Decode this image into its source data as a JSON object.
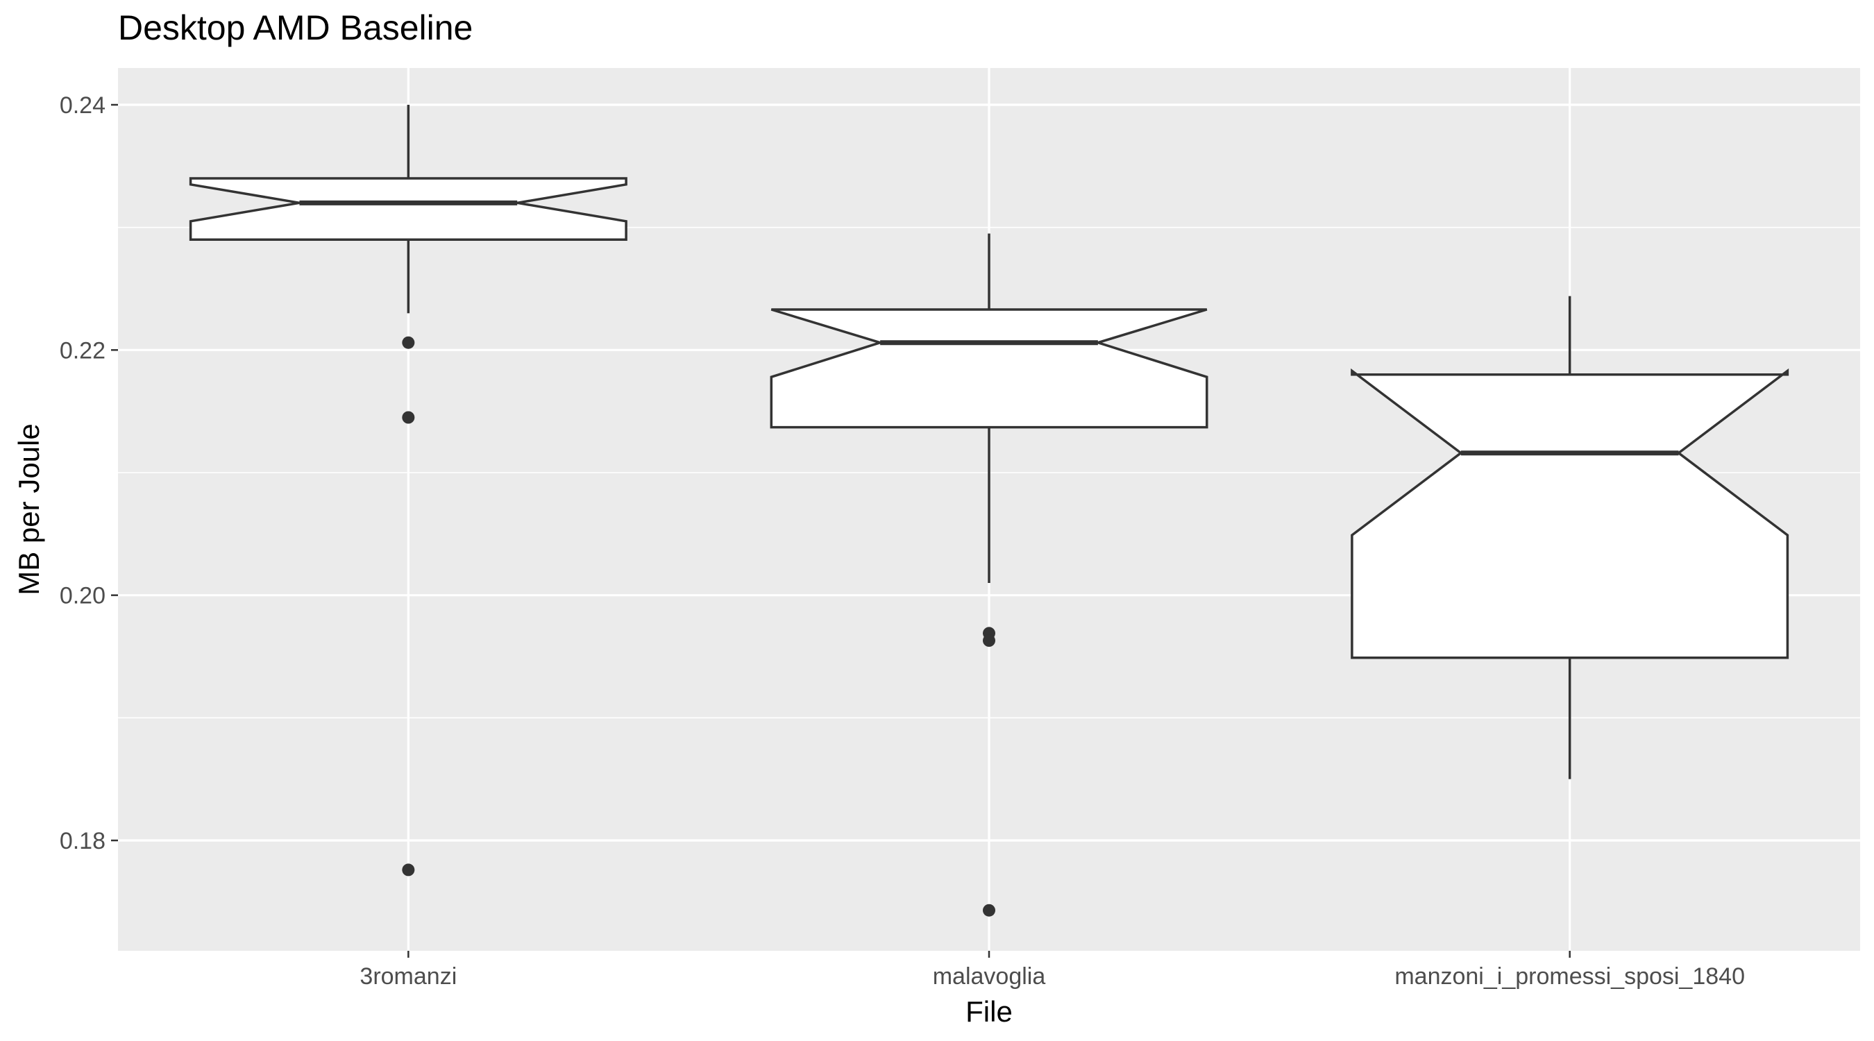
{
  "chart_data": {
    "type": "boxplot",
    "title": "Desktop AMD Baseline",
    "xlabel": "File",
    "ylabel": "MB per Joule",
    "categories": [
      "3romanzi",
      "malavoglia",
      "manzoni_i_promessi_sposi_1840"
    ],
    "ylim": [
      0.171,
      0.243
    ],
    "yticks": [
      0.18,
      0.2,
      0.22,
      0.24
    ],
    "ytick_labels": [
      "0.18",
      "0.20",
      "0.22",
      "0.24"
    ],
    "notched": true,
    "grid": true,
    "boxes": [
      {
        "category": "3romanzi",
        "lower_whisker": 0.223,
        "q1": 0.229,
        "median": 0.232,
        "q3": 0.234,
        "upper_whisker": 0.24,
        "notch_low": 0.2305,
        "notch_high": 0.2335,
        "outliers": [
          0.2206,
          0.2145,
          0.1776
        ]
      },
      {
        "category": "malavoglia",
        "lower_whisker": 0.201,
        "q1": 0.2137,
        "median": 0.2206,
        "q3": 0.2233,
        "upper_whisker": 0.2295,
        "notch_low": 0.2178,
        "notch_high": 0.2233,
        "outliers": [
          0.1969,
          0.1963,
          0.1743
        ]
      },
      {
        "category": "manzoni_i_promessi_sposi_1840",
        "lower_whisker": 0.185,
        "q1": 0.1949,
        "median": 0.2116,
        "q3": 0.218,
        "upper_whisker": 0.2244,
        "notch_low": 0.2049,
        "notch_high": 0.2183,
        "outliers": []
      }
    ],
    "colors": {
      "panel": "#EBEBEB",
      "grid": "#FFFFFF",
      "box_fill": "#FFFFFF",
      "stroke": "#333333",
      "text": "#000000",
      "tick_text": "#4D4D4D",
      "tick_mark": "#333333"
    }
  }
}
